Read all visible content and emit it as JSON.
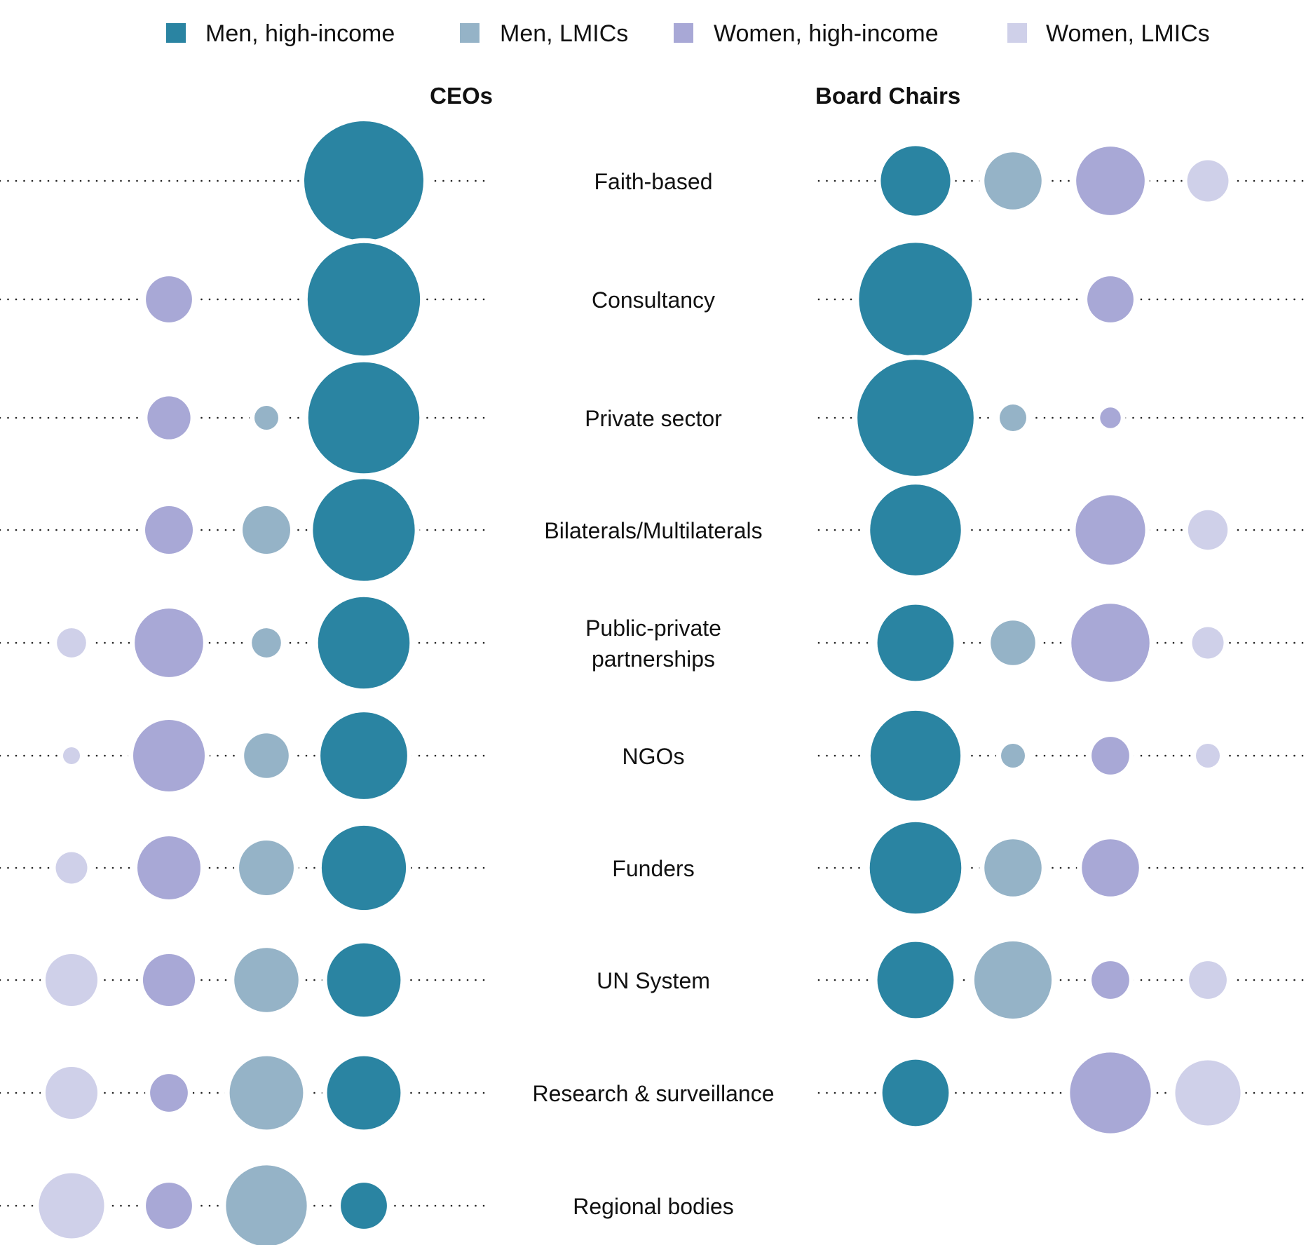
{
  "chart_data": {
    "type": "bubble",
    "legend": [
      {
        "name": "Men, high-income",
        "color": "#2a84a2"
      },
      {
        "name": "Men, LMICs",
        "color": "#95b3c7"
      },
      {
        "name": "Women, high-income",
        "color": "#a8a8d6"
      },
      {
        "name": "Women, LMICs",
        "color": "#cfd0e9"
      }
    ],
    "legend_position": "top",
    "categories": [
      "Faith-based",
      "Consultancy",
      "Private sector",
      "Bilaterals/Multilaterals",
      "Public-private partnerships",
      "NGOs",
      "Funders",
      "UN System",
      "Research & surveillance",
      "Regional bodies"
    ],
    "category_label_lines": [
      [
        "Faith-based"
      ],
      [
        "Consultancy"
      ],
      [
        "Private sector"
      ],
      [
        "Bilaterals/Multilaterals"
      ],
      [
        "Public-private",
        "partnerships"
      ],
      [
        "NGOs"
      ],
      [
        "Funders"
      ],
      [
        "UN System"
      ],
      [
        "Research & surveillance"
      ],
      [
        "Regional bodies"
      ]
    ],
    "panels": [
      {
        "title": "CEOs",
        "series": [
          {
            "name": "Men, high-income",
            "values": [
              100,
              89,
              87,
              73,
              59,
              53,
              50,
              38,
              38,
              15
            ]
          },
          {
            "name": "Men, LMICs",
            "values": [
              0,
              0,
              4,
              16,
              6,
              14,
              21,
              29,
              38,
              46
            ]
          },
          {
            "name": "Women, high-income",
            "values": [
              0,
              15,
              13,
              16,
              33,
              36,
              28,
              19,
              10,
              15
            ]
          },
          {
            "name": "Women, LMICs",
            "values": [
              0,
              0,
              0,
              0,
              6,
              2,
              7,
              19,
              19,
              30
            ]
          }
        ]
      },
      {
        "title": "Board Chairs",
        "series": [
          {
            "name": "Men, high-income",
            "values": [
              34,
              90,
              95,
              58,
              41,
              57,
              59,
              41,
              31,
              0
            ]
          },
          {
            "name": "Men, LMICs",
            "values": [
              23,
              0,
              5,
              0,
              14,
              4,
              23,
              42,
              0,
              0
            ]
          },
          {
            "name": "Women, high-income",
            "values": [
              33,
              15,
              3,
              34,
              43,
              10,
              23,
              10,
              46,
              0
            ]
          },
          {
            "name": "Women, LMICs",
            "values": [
              12,
              0,
              0,
              11,
              7,
              4,
              0,
              10,
              30,
              0
            ]
          }
        ]
      }
    ]
  }
}
